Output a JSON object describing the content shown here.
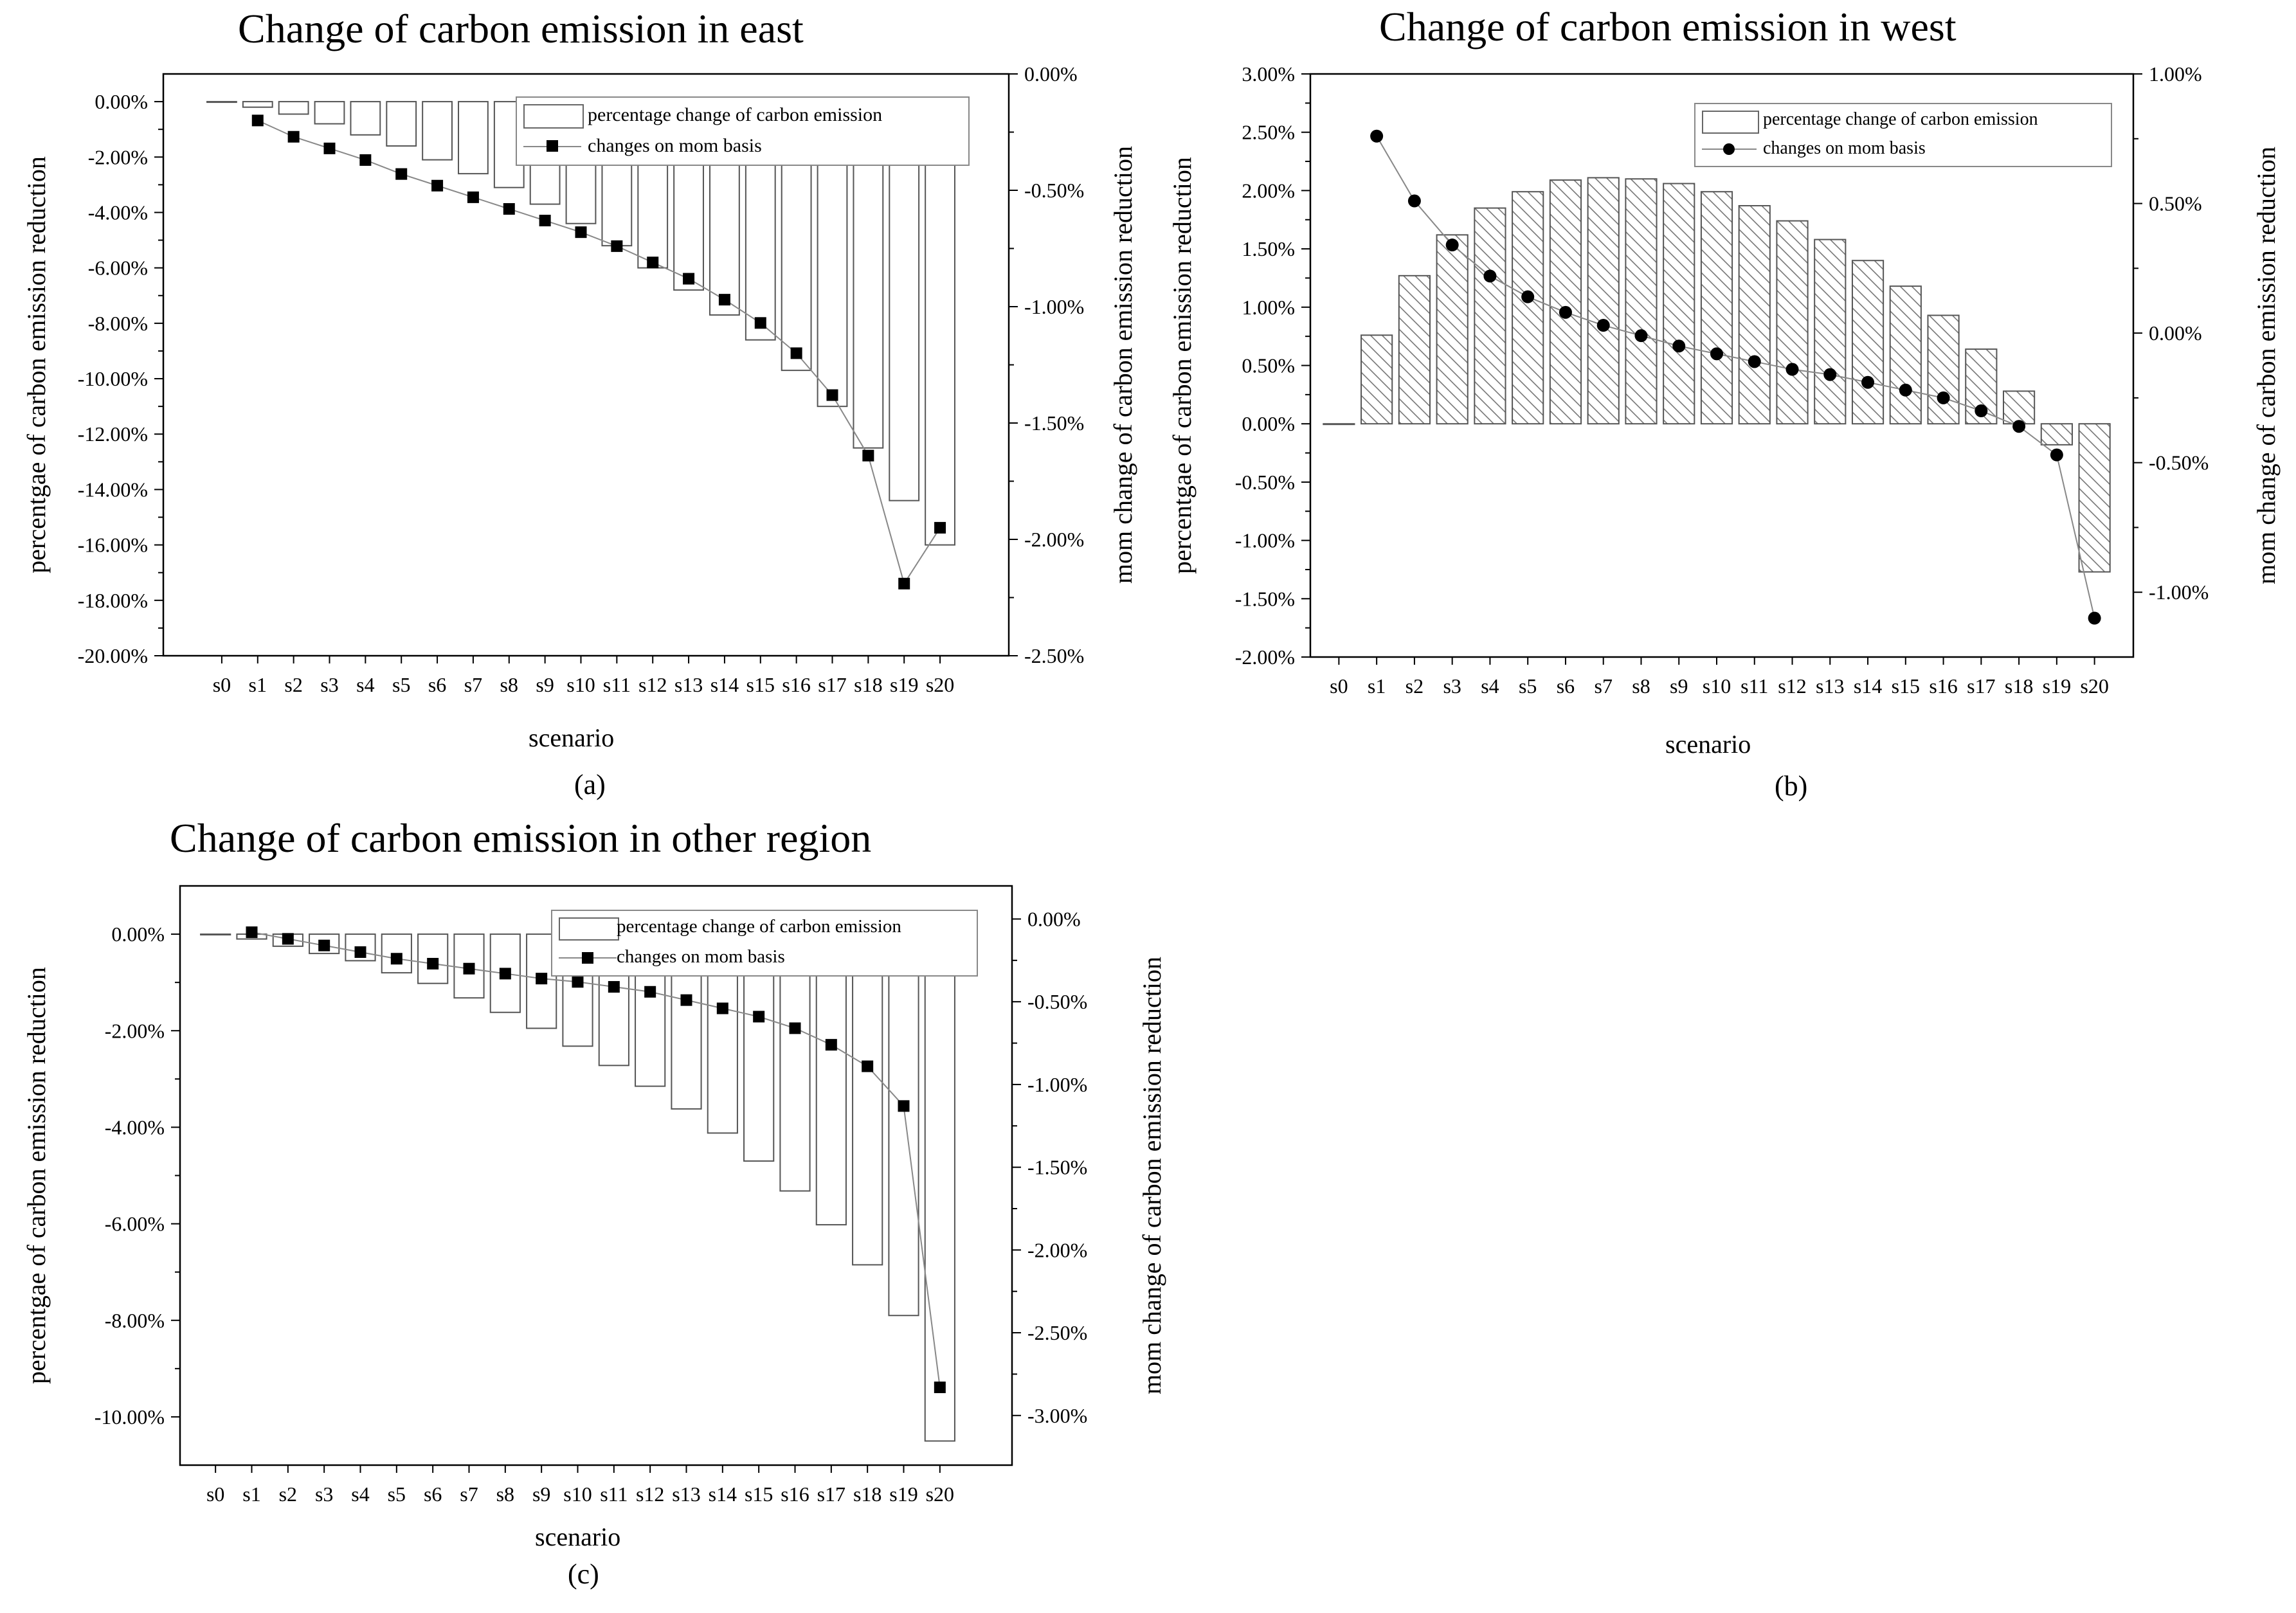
{
  "chart_data": [
    {
      "id": "east",
      "type": "bar+line",
      "title": "Change of carbon emission in east",
      "sublabel": "(a)",
      "xlabel": "scenario",
      "ylabel": "percentgae of carbon emission reduction",
      "y2label": "mom change of carbon emission reduction",
      "categories": [
        "s0",
        "s1",
        "s2",
        "s3",
        "s4",
        "s5",
        "s6",
        "s7",
        "s8",
        "s9",
        "s10",
        "s11",
        "s12",
        "s13",
        "s14",
        "s15",
        "s16",
        "s17",
        "s18",
        "s19",
        "s20"
      ],
      "ylim": [
        -20,
        1
      ],
      "yticks": [
        0,
        -2,
        -4,
        -6,
        -8,
        -10,
        -12,
        -14,
        -16,
        -18,
        -20
      ],
      "ytick_labels": [
        "0.00%",
        "-2.00%",
        "-4.00%",
        "-6.00%",
        "-8.00%",
        "-10.00%",
        "-12.00%",
        "-14.00%",
        "-16.00%",
        "-18.00%",
        "-20.00%"
      ],
      "y2lim": [
        -2.5,
        0
      ],
      "y2ticks": [
        0,
        -0.5,
        -1,
        -1.5,
        -2,
        -2.5
      ],
      "y2tick_labels": [
        "0.00%",
        "-0.50%",
        "-1.00%",
        "-1.50%",
        "-2.00%",
        "-2.50%"
      ],
      "hatch": false,
      "marker": "square",
      "legend": [
        "percentage change of carbon emission",
        "changes on mom basis"
      ],
      "bars": [
        0,
        -0.2,
        -0.45,
        -0.8,
        -1.2,
        -1.6,
        -2.1,
        -2.6,
        -3.1,
        -3.7,
        -4.4,
        -5.2,
        -6.0,
        -6.8,
        -7.7,
        -8.6,
        -9.7,
        -11.0,
        -12.5,
        -14.4,
        -16.0
      ],
      "line": [
        null,
        -0.2,
        -0.27,
        -0.32,
        -0.37,
        -0.43,
        -0.48,
        -0.53,
        -0.58,
        -0.63,
        -0.68,
        -0.74,
        -0.81,
        -0.88,
        -0.97,
        -1.07,
        -1.2,
        -1.38,
        -1.64,
        -2.19,
        -1.95
      ]
    },
    {
      "id": "west",
      "type": "bar+line",
      "title": "Change of carbon emission in west",
      "sublabel": "(b)",
      "xlabel": "scenario",
      "ylabel": "percentgae of carbon emission reduction",
      "y2label": "mom change of carbon emission reduction",
      "categories": [
        "s0",
        "s1",
        "s2",
        "s3",
        "s4",
        "s5",
        "s6",
        "s7",
        "s8",
        "s9",
        "s10",
        "s11",
        "s12",
        "s13",
        "s14",
        "s15",
        "s16",
        "s17",
        "s18",
        "s19",
        "s20"
      ],
      "ylim": [
        -2,
        3
      ],
      "yticks": [
        3,
        2.5,
        2,
        1.5,
        1,
        0.5,
        0,
        -0.5,
        -1,
        -1.5,
        -2
      ],
      "ytick_labels": [
        "3.00%",
        "2.50%",
        "2.00%",
        "1.50%",
        "1.00%",
        "0.50%",
        "0.00%",
        "-0.50%",
        "-1.00%",
        "-1.50%",
        "-2.00%"
      ],
      "y2lim": [
        -1.25,
        1
      ],
      "y2ticks": [
        1,
        0.5,
        0,
        -0.5,
        -1
      ],
      "y2tick_labels": [
        "1.00%",
        "0.50%",
        "0.00%",
        "-0.50%",
        "-1.00%"
      ],
      "hatch": true,
      "marker": "circle",
      "legend": [
        "percentage change of carbon emission",
        "changes on mom basis"
      ],
      "bars": [
        0,
        0.76,
        1.27,
        1.62,
        1.85,
        1.99,
        2.09,
        2.11,
        2.1,
        2.06,
        1.99,
        1.87,
        1.74,
        1.58,
        1.4,
        1.18,
        0.93,
        0.64,
        0.28,
        -0.18,
        -1.27
      ],
      "line": [
        null,
        0.76,
        0.51,
        0.34,
        0.22,
        0.14,
        0.08,
        0.03,
        -0.01,
        -0.05,
        -0.08,
        -0.11,
        -0.14,
        -0.16,
        -0.19,
        -0.22,
        -0.25,
        -0.3,
        -0.36,
        -0.47,
        -1.1
      ]
    },
    {
      "id": "other",
      "type": "bar+line",
      "title": "Change of carbon emission in other region",
      "sublabel": "(c)",
      "xlabel": "scenario",
      "ylabel": "percentgae of carbon emission reduction",
      "y2label": "mom change of carbon emission reduction",
      "categories": [
        "s0",
        "s1",
        "s2",
        "s3",
        "s4",
        "s5",
        "s6",
        "s7",
        "s8",
        "s9",
        "s10",
        "s11",
        "s12",
        "s13",
        "s14",
        "s15",
        "s16",
        "s17",
        "s18",
        "s19",
        "s20"
      ],
      "ylim": [
        -11,
        1
      ],
      "yticks": [
        0,
        -2,
        -4,
        -6,
        -8,
        -10
      ],
      "ytick_labels": [
        "0.00%",
        "-2.00%",
        "-4.00%",
        "-6.00%",
        "-8.00%",
        "-10.00%"
      ],
      "y2lim": [
        -3.3,
        0.2
      ],
      "y2ticks": [
        0,
        -0.5,
        -1,
        -1.5,
        -2,
        -2.5,
        -3
      ],
      "y2tick_labels": [
        "0.00%",
        "-0.50%",
        "-1.00%",
        "-1.50%",
        "-2.00%",
        "-2.50%",
        "-3.00%"
      ],
      "hatch": false,
      "marker": "square",
      "legend": [
        "percentage change of carbon emission",
        "changes on mom basis"
      ],
      "bars": [
        0,
        -0.1,
        -0.25,
        -0.4,
        -0.55,
        -0.8,
        -1.02,
        -1.32,
        -1.62,
        -1.95,
        -2.32,
        -2.72,
        -3.15,
        -3.62,
        -4.12,
        -4.7,
        -5.32,
        -6.02,
        -6.85,
        -7.9,
        -10.5
      ],
      "line": [
        null,
        -0.08,
        -0.12,
        -0.16,
        -0.2,
        -0.24,
        -0.27,
        -0.3,
        -0.33,
        -0.36,
        -0.38,
        -0.41,
        -0.44,
        -0.49,
        -0.54,
        -0.59,
        -0.66,
        -0.76,
        -0.89,
        -1.13,
        -2.83
      ]
    }
  ]
}
